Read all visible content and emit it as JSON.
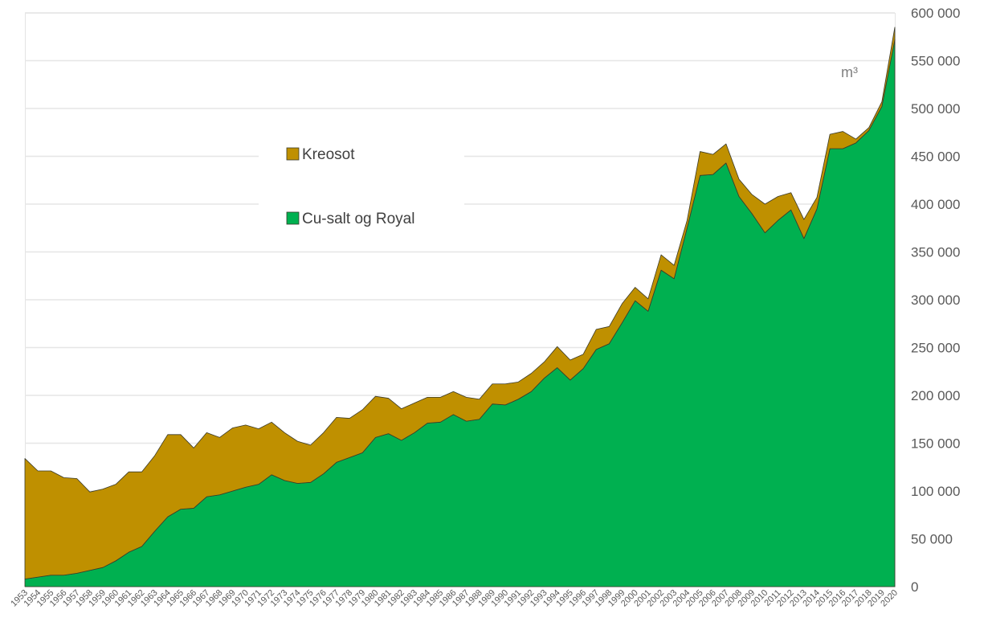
{
  "chart_data": {
    "type": "area",
    "stacked": true,
    "unit": "m³",
    "x": [
      "1953",
      "1954",
      "1955",
      "1956",
      "1957",
      "1958",
      "1959",
      "1960",
      "1961",
      "1962",
      "1963",
      "1964",
      "1965",
      "1966",
      "1967",
      "1968",
      "1969",
      "1970",
      "1971",
      "1972",
      "1973",
      "1974",
      "1975",
      "1976",
      "1977",
      "1978",
      "1979",
      "1980",
      "1981",
      "1982",
      "1983",
      "1984",
      "1985",
      "1986",
      "1987",
      "1988",
      "1989",
      "1990",
      "1991",
      "1992",
      "1993",
      "1994",
      "1995",
      "1996",
      "1997",
      "1998",
      "1999",
      "2000",
      "2001",
      "2002",
      "2003",
      "2004",
      "2005",
      "2006",
      "2007",
      "2008",
      "2009",
      "2010",
      "2011",
      "2012",
      "2013",
      "2014",
      "2015",
      "2016",
      "2017",
      "2018",
      "2019",
      "2020"
    ],
    "series": [
      {
        "name": "Cu-salt og Royal",
        "color": "#00B050",
        "values": [
          8000,
          10000,
          12000,
          12000,
          14000,
          17000,
          20000,
          27000,
          36000,
          42000,
          58000,
          73000,
          81000,
          82000,
          94000,
          96000,
          100000,
          104000,
          107000,
          117000,
          111000,
          108000,
          109000,
          118000,
          130000,
          135000,
          140000,
          156000,
          160000,
          153000,
          161000,
          171000,
          172000,
          180000,
          173000,
          175000,
          191000,
          190000,
          196000,
          204000,
          218000,
          229000,
          216000,
          228000,
          248000,
          254000,
          276000,
          299000,
          288000,
          331000,
          322000,
          375000,
          430000,
          431000,
          443000,
          408000,
          390000,
          370000,
          383000,
          394000,
          364000,
          395000,
          458000,
          458000,
          464000,
          477000,
          502000,
          572000
        ]
      },
      {
        "name": "Kreosot",
        "color": "#BF9000",
        "values": [
          126000,
          111000,
          109000,
          102000,
          99000,
          82000,
          82000,
          80000,
          84000,
          78000,
          79000,
          86000,
          78000,
          63000,
          67000,
          60000,
          66000,
          65000,
          58000,
          55000,
          50000,
          44000,
          39000,
          43000,
          47000,
          41000,
          45000,
          43000,
          37000,
          33000,
          31000,
          27000,
          26000,
          24000,
          25000,
          21000,
          21000,
          22000,
          18000,
          19000,
          17000,
          22000,
          21000,
          15000,
          21000,
          18000,
          20000,
          14000,
          13000,
          16000,
          14000,
          8000,
          25000,
          21000,
          20000,
          18000,
          20000,
          30000,
          25000,
          18000,
          20000,
          12000,
          15000,
          18000,
          4000,
          3000,
          5000,
          13000
        ]
      }
    ],
    "ylim": [
      0,
      600000
    ],
    "yticks": [
      0,
      50000,
      100000,
      150000,
      200000,
      250000,
      300000,
      350000,
      400000,
      450000,
      500000,
      550000,
      600000
    ],
    "ytick_labels": [
      "0",
      "50 000",
      "100 000",
      "150 000",
      "200 000",
      "250 000",
      "300 000",
      "350 000",
      "400 000",
      "450 000",
      "500 000",
      "550 000",
      "600 000"
    ],
    "y_axis_side": "right",
    "grid": true,
    "legend": {
      "placement": "upper-left-center",
      "entries": [
        {
          "label": "Kreosot",
          "color": "#BF9000"
        },
        {
          "label": "Cu-salt og Royal",
          "color": "#00B050"
        }
      ]
    }
  }
}
